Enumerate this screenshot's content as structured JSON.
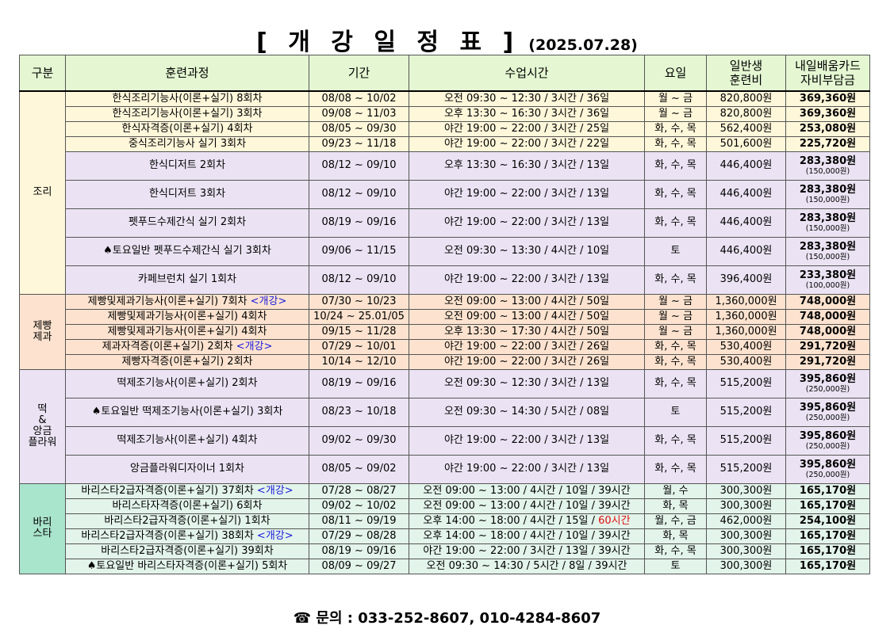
{
  "title": {
    "main": "[ 개 강 일 정 표 ]",
    "date": "(2025.07.28)"
  },
  "headers": {
    "category": "구분",
    "course": "훈련과정",
    "period": "기간",
    "time": "수업시간",
    "days": "요일",
    "fee_line1": "일반생",
    "fee_line2": "훈련비",
    "support_line1": "내일배움카드",
    "support_line2": "자비부담금"
  },
  "sections": [
    {
      "category_lines": [
        "조리"
      ],
      "bg": "#fff7da",
      "rows": [
        {
          "course": "한식조리기능사(이론+실기) 8회차",
          "period": "08/08 ~ 10/02",
          "time": "오전 09:30 ~ 12:30 / 3시간 / 36일",
          "days": "월 ~ 금",
          "fee": "820,800원",
          "support": "369,360원",
          "bg": "#fff7da"
        },
        {
          "course": "한식조리기능사(이론+실기) 3회차",
          "period": "09/08 ~ 11/03",
          "time": "오후 13:30 ~ 16:30 / 3시간 / 36일",
          "days": "월 ~ 금",
          "fee": "820,800원",
          "support": "369,360원",
          "bg": "#fff7da"
        },
        {
          "course": "한식자격증(이론+실기) 4회차",
          "period": "08/05 ~ 09/30",
          "time": "야간 19:00 ~ 22:00 / 3시간 / 25일",
          "days": "화, 수, 목",
          "fee": "562,400원",
          "support": "253,080원",
          "bg": "#fff7da"
        },
        {
          "course": "중식조리기능사 실기 3회차",
          "period": "09/23 ~ 11/18",
          "time": "야간 19:00 ~ 22:00 / 3시간 / 22일",
          "days": "화, 수, 목",
          "fee": "501,600원",
          "support": "225,720원",
          "bg": "#fff7da"
        },
        {
          "course": "한식디저트 2회차",
          "period": "08/12 ~ 09/10",
          "time": "오후 13:30 ~ 16:30 / 3시간 / 13일",
          "days": "화, 수, 목",
          "fee": "446,400원",
          "support": "283,380원",
          "note": "(150,000원)",
          "bg": "#ebe3f3"
        },
        {
          "course": "한식디저트 3회차",
          "period": "08/12 ~ 09/10",
          "time": "야간 19:00 ~ 22:00 / 3시간 / 13일",
          "days": "화, 수, 목",
          "fee": "446,400원",
          "support": "283,380원",
          "note": "(150,000원)",
          "bg": "#ebe3f3"
        },
        {
          "course": "펫푸드수제간식 실기 2회차",
          "period": "08/19 ~ 09/16",
          "time": "야간 19:00 ~ 22:00 / 3시간 / 13일",
          "days": "화, 수, 목",
          "fee": "446,400원",
          "support": "283,380원",
          "note": "(150,000원)",
          "bg": "#ebe3f3"
        },
        {
          "course": "♠토요일반 펫푸드수제간식 실기 3회차",
          "period": "09/06 ~ 11/15",
          "time": "오전 09:30 ~ 13:30 / 4시간 / 10일",
          "days": "토",
          "fee": "446,400원",
          "support": "283,380원",
          "note": "(150,000원)",
          "bg": "#ebe3f3"
        },
        {
          "course": "카페브런치 실기 1회차",
          "period": "08/12 ~ 09/10",
          "time": "야간 19:00 ~ 22:00 / 3시간 / 13일",
          "days": "화, 수, 목",
          "fee": "396,400원",
          "support": "233,380원",
          "note": "(100,000원)",
          "bg": "#ebe3f3"
        }
      ]
    },
    {
      "category_lines": [
        "제빵",
        "제과"
      ],
      "bg": "#fde3cf",
      "rows": [
        {
          "course": "제빵및제과기능사(이론+실기) 7회차",
          "badge": "<개강>",
          "period": "07/30 ~ 10/23",
          "time": "오전 09:00 ~ 13:00 / 4시간 / 50일",
          "days": "월 ~ 금",
          "fee": "1,360,000원",
          "support": "748,000원",
          "bg": "#fde3cf"
        },
        {
          "course": "제빵및제과기능사(이론+실기) 4회차",
          "period": "10/24 ~ 25.01/05",
          "time": "오전 09:00 ~ 13:00 / 4시간 / 50일",
          "days": "월 ~ 금",
          "fee": "1,360,000원",
          "support": "748,000원",
          "bg": "#fde3cf"
        },
        {
          "course": "제빵및제과기능사(이론+실기) 4회차",
          "period": "09/15 ~ 11/28",
          "time": "오후 13:30 ~ 17:30 / 4시간 / 50일",
          "days": "월 ~ 금",
          "fee": "1,360,000원",
          "support": "748,000원",
          "bg": "#fde3cf"
        },
        {
          "course": "제과자격증(이론+실기) 2회차",
          "badge": "<개강>",
          "period": "07/29 ~ 10/01",
          "time": "야간 19:00 ~ 22:00 / 3시간 / 26일",
          "days": "화, 수, 목",
          "fee": "530,400원",
          "support": "291,720원",
          "bg": "#fde3cf"
        },
        {
          "course": "제빵자격증(이론+실기) 2회차",
          "period": "10/14 ~ 12/10",
          "time": "야간 19:00 ~ 22:00 / 3시간 / 26일",
          "days": "화, 수, 목",
          "fee": "530,400원",
          "support": "291,720원",
          "bg": "#fde3cf"
        }
      ]
    },
    {
      "category_lines": [
        "떡",
        "&",
        "앙금",
        "플라워"
      ],
      "bg": "#ebe3f3",
      "rows": [
        {
          "course": "떡제조기능사(이론+실기) 2회차",
          "period": "08/19 ~ 09/16",
          "time": "오전 09:30 ~ 12:30 / 3시간 / 13일",
          "days": "화, 수, 목",
          "fee": "515,200원",
          "support": "395,860원",
          "note": "(250,000원)",
          "bg": "#ebe3f3"
        },
        {
          "course": "♠토요일반 떡제조기능사(이론+실기) 3회차",
          "period": "08/23 ~ 10/18",
          "time": "오전 09:30 ~ 14:30 / 5시간 / 08일",
          "days": "토",
          "fee": "515,200원",
          "support": "395,860원",
          "note": "(250,000원)",
          "bg": "#ebe3f3"
        },
        {
          "course": "떡제조기능사(이론+실기) 4회차",
          "period": "09/02 ~ 09/30",
          "time": "야간 19:00 ~ 22:00 / 3시간 / 13일",
          "days": "화, 수, 목",
          "fee": "515,200원",
          "support": "395,860원",
          "note": "(250,000원)",
          "bg": "#ebe3f3"
        },
        {
          "course": "앙금플라워디자이너 1회차",
          "period": "08/05 ~ 09/02",
          "time": "야간 19:00 ~ 22:00 / 3시간 / 13일",
          "days": "화, 수, 목",
          "fee": "515,200원",
          "support": "395,860원",
          "note": "(250,000원)",
          "bg": "#ebe3f3"
        }
      ]
    },
    {
      "category_lines": [
        "바리",
        "스타"
      ],
      "bg": "#a9e4cc",
      "rows": [
        {
          "course": "바리스타2급자격증(이론+실기) 37회차",
          "badge": "<개강>",
          "period": "07/28 ~ 08/27",
          "time": "오전 09:00 ~ 13:00 / 4시간 / 10일 / 39시간",
          "days": "월, 수",
          "fee": "300,300원",
          "support": "165,170원",
          "bg": "#e3f4ea"
        },
        {
          "course": "바리스타자격증(이론+실기) 6회차",
          "period": "09/02 ~ 10/02",
          "time": "오전 09:00 ~ 13:00 / 4시간 / 10일 / 39시간",
          "days": "화, 목",
          "fee": "300,300원",
          "support": "165,170원",
          "bg": "#e3f4ea"
        },
        {
          "course": "바리스타2급자격증(이론+실기) 1회차",
          "period": "08/11 ~ 09/19",
          "time": "오후 14:00 ~ 18:00 / 4시간 / 15일 / ",
          "time_red": "60시간",
          "days": "월, 수, 금",
          "fee": "462,000원",
          "support": "254,100원",
          "bg": "#e3f4ea"
        },
        {
          "course": "바리스타2급자격증(이론+실기) 38회차",
          "badge": "<개강>",
          "period": "07/29 ~ 08/28",
          "time": "오후 14:00 ~ 18:00 / 4시간 / 10일 / 39시간",
          "days": "화, 목",
          "fee": "300,300원",
          "support": "165,170원",
          "bg": "#e3f4ea"
        },
        {
          "course": "바리스타2급자격증(이론+실기) 39회차",
          "period": "08/19 ~ 09/16",
          "time": "야간 19:00 ~ 22:00 / 3시간 / 13일 / 39시간",
          "days": "화, 수, 목",
          "fee": "300,300원",
          "support": "165,170원",
          "bg": "#e3f4ea"
        },
        {
          "course": "♠토요일반 바리스타자격증(이론+실기) 5회차",
          "period": "08/09 ~ 09/27",
          "time": "오전 09:30 ~ 14:30 / 5시간 / 8일 / 39시간",
          "days": "토",
          "fee": "300,300원",
          "support": "165,170원",
          "bg": "#e3f4ea"
        }
      ]
    }
  ],
  "contact": {
    "icon": "phone-icon",
    "label": "☎ 문의 : 033-252-8607, 010-4284-8607"
  }
}
